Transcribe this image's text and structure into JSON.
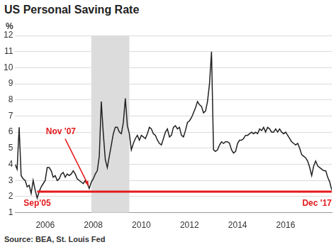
{
  "chart_data": {
    "type": "line",
    "title": "US Personal Saving Rate",
    "y_label": "%",
    "source": "Source: BEA, St. Louis Fed",
    "color": "#222222",
    "grid": true,
    "xlim": [
      2004.75,
      2017.917
    ],
    "xticks": [
      2006,
      2008,
      2010,
      2012,
      2014,
      2016
    ],
    "ylim": [
      1,
      12
    ],
    "yticks": [
      1,
      2,
      3,
      4,
      5,
      6,
      7,
      8,
      9,
      10,
      11,
      12
    ],
    "recession": [
      2007.917,
      2009.5
    ],
    "reference_line": {
      "y": 2.3,
      "x": [
        2005.667,
        2017.917
      ],
      "color": "#e31a1c"
    },
    "annotations": [
      {
        "text": "Nov '07",
        "x": 2007.833,
        "y": 2.5
      },
      {
        "text": "Sep'05",
        "x": 2005.667,
        "y": 2.3
      },
      {
        "text": "Dec '17",
        "x": 2017.917,
        "y": 2.3
      }
    ],
    "x": [
      2004.75,
      2004.833,
      2004.917,
      2005,
      2005.083,
      2005.167,
      2005.25,
      2005.333,
      2005.417,
      2005.5,
      2005.583,
      2005.667,
      2005.75,
      2005.833,
      2005.917,
      2006,
      2006.083,
      2006.167,
      2006.25,
      2006.333,
      2006.417,
      2006.5,
      2006.583,
      2006.667,
      2006.75,
      2006.833,
      2006.917,
      2007,
      2007.083,
      2007.167,
      2007.25,
      2007.333,
      2007.417,
      2007.5,
      2007.583,
      2007.667,
      2007.75,
      2007.833,
      2007.917,
      2008,
      2008.083,
      2008.167,
      2008.25,
      2008.333,
      2008.417,
      2008.5,
      2008.583,
      2008.667,
      2008.75,
      2008.833,
      2008.917,
      2009,
      2009.083,
      2009.167,
      2009.25,
      2009.333,
      2009.417,
      2009.5,
      2009.583,
      2009.667,
      2009.75,
      2009.833,
      2009.917,
      2010,
      2010.083,
      2010.167,
      2010.25,
      2010.333,
      2010.417,
      2010.5,
      2010.583,
      2010.667,
      2010.75,
      2010.833,
      2010.917,
      2011,
      2011.083,
      2011.167,
      2011.25,
      2011.333,
      2011.417,
      2011.5,
      2011.583,
      2011.667,
      2011.75,
      2011.833,
      2011.917,
      2012,
      2012.083,
      2012.167,
      2012.25,
      2012.333,
      2012.417,
      2012.5,
      2012.583,
      2012.667,
      2012.75,
      2012.833,
      2012.917,
      2013,
      2013.083,
      2013.167,
      2013.25,
      2013.333,
      2013.417,
      2013.5,
      2013.583,
      2013.667,
      2013.75,
      2013.833,
      2013.917,
      2014,
      2014.083,
      2014.167,
      2014.25,
      2014.333,
      2014.417,
      2014.5,
      2014.583,
      2014.667,
      2014.75,
      2014.833,
      2014.917,
      2015,
      2015.083,
      2015.167,
      2015.25,
      2015.333,
      2015.417,
      2015.5,
      2015.583,
      2015.667,
      2015.75,
      2015.833,
      2015.917,
      2016,
      2016.083,
      2016.167,
      2016.25,
      2016.333,
      2016.417,
      2016.5,
      2016.583,
      2016.667,
      2016.75,
      2016.833,
      2016.917,
      2017,
      2017.083,
      2017.167,
      2017.25,
      2017.333,
      2017.417,
      2017.5,
      2017.583,
      2017.667,
      2017.75,
      2017.833,
      2017.917
    ],
    "values": [
      4.0,
      3.7,
      6.3,
      3.3,
      3.1,
      3.0,
      2.6,
      2.7,
      2.2,
      3.0,
      2.4,
      1.9,
      2.3,
      2.6,
      2.8,
      3.0,
      3.8,
      3.8,
      3.6,
      3.2,
      3.3,
      3.0,
      3.1,
      3.4,
      3.5,
      3.2,
      3.4,
      3.3,
      3.4,
      3.6,
      3.4,
      3.1,
      3.0,
      2.9,
      2.8,
      3.0,
      2.8,
      2.5,
      2.9,
      3.1,
      3.4,
      3.6,
      4.5,
      7.9,
      5.9,
      4.3,
      3.8,
      4.5,
      5.2,
      5.9,
      6.3,
      6.3,
      6.0,
      5.9,
      6.6,
      8.1,
      6.4,
      5.9,
      4.9,
      5.3,
      5.6,
      5.8,
      5.5,
      5.8,
      5.7,
      5.6,
      5.9,
      6.3,
      6.2,
      5.9,
      5.8,
      5.5,
      5.3,
      5.2,
      5.6,
      6.0,
      6.2,
      5.7,
      5.8,
      6.3,
      6.4,
      6.2,
      6.3,
      5.8,
      5.7,
      6.1,
      6.6,
      6.7,
      6.9,
      7.2,
      7.5,
      7.9,
      7.7,
      7.6,
      7.2,
      7.3,
      7.9,
      9.0,
      11.0,
      4.9,
      4.8,
      4.9,
      5.2,
      5.4,
      5.3,
      5.4,
      5.4,
      5.3,
      4.9,
      4.7,
      4.8,
      5.3,
      5.5,
      5.5,
      5.6,
      5.8,
      5.8,
      5.9,
      6.0,
      5.9,
      6.0,
      5.9,
      6.2,
      6.1,
      6.3,
      6.0,
      6.3,
      6.2,
      6.0,
      6.0,
      6.2,
      6.0,
      6.2,
      6.0,
      5.9,
      6.0,
      5.8,
      5.6,
      5.4,
      5.3,
      5.2,
      5.3,
      5.0,
      4.6,
      4.5,
      4.4,
      4.2,
      3.8,
      3.3,
      3.9,
      4.2,
      3.9,
      3.8,
      3.7,
      3.6,
      3.6,
      3.2,
      2.9,
      2.4
    ]
  }
}
